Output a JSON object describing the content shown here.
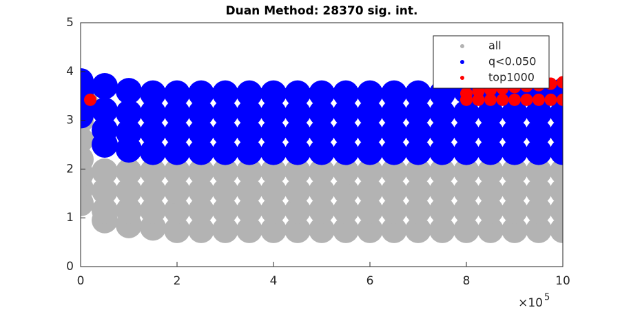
{
  "chart_data": {
    "type": "scatter",
    "title": "Duan Method: 28370 sig. int.",
    "xlim": [
      0,
      1000000
    ],
    "ylim": [
      0,
      5
    ],
    "xticks": [
      0,
      {
        "value": 200000,
        "label": "2"
      },
      {
        "value": 400000,
        "label": "4"
      },
      {
        "value": 600000,
        "label": "6"
      },
      {
        "value": 800000,
        "label": "8"
      },
      {
        "value": 1000000,
        "label": "10"
      }
    ],
    "yticks": [
      0,
      1,
      2,
      3,
      4,
      5
    ],
    "x_exponent": {
      "base": "×10",
      "power": "5"
    },
    "legend": "northeast",
    "series": [
      {
        "name": "all",
        "color": "#b3b3b3",
        "x": [
          0,
          50000,
          100000,
          150000,
          200000,
          250000,
          300000,
          350000,
          400000,
          450000,
          500000,
          550000,
          600000,
          650000,
          700000,
          750000,
          800000,
          850000,
          900000,
          950000,
          1000000,
          0,
          50000,
          100000,
          150000,
          200000,
          250000,
          300000,
          350000,
          400000,
          450000,
          500000,
          550000,
          600000,
          650000,
          700000,
          750000,
          800000,
          850000,
          900000,
          950000,
          1000000,
          0,
          50000,
          100000,
          150000,
          200000,
          250000,
          300000,
          350000,
          400000,
          450000,
          500000,
          550000,
          600000,
          650000,
          700000,
          750000,
          800000,
          850000,
          900000,
          950000,
          1000000,
          0,
          50000,
          100000,
          150000,
          200000,
          250000,
          300000,
          350000,
          400000,
          450000,
          500000,
          550000,
          600000,
          650000,
          700000,
          750000,
          800000,
          850000,
          900000,
          950000,
          1000000,
          0,
          0,
          10000
        ],
        "y": [
          1.3,
          0.95,
          0.85,
          0.8,
          0.75,
          0.75,
          0.75,
          0.75,
          0.75,
          0.75,
          0.75,
          0.75,
          0.75,
          0.75,
          0.75,
          0.75,
          0.75,
          0.75,
          0.75,
          0.75,
          0.75,
          1.6,
          1.15,
          1.15,
          1.15,
          1.15,
          1.15,
          1.15,
          1.15,
          1.15,
          1.15,
          1.15,
          1.15,
          1.15,
          1.15,
          1.15,
          1.15,
          1.15,
          1.15,
          1.15,
          1.15,
          1.15,
          1.9,
          1.55,
          1.55,
          1.55,
          1.55,
          1.55,
          1.55,
          1.55,
          1.55,
          1.55,
          1.55,
          1.55,
          1.55,
          1.55,
          1.55,
          1.55,
          1.55,
          1.55,
          1.55,
          1.55,
          1.55,
          2.2,
          1.95,
          1.95,
          1.95,
          1.95,
          1.95,
          1.95,
          1.95,
          1.95,
          1.95,
          1.95,
          1.95,
          1.95,
          1.95,
          1.95,
          1.95,
          1.95,
          1.95,
          1.95,
          1.95,
          1.95,
          2.6,
          3.0,
          3.35
        ]
      },
      {
        "name": "q<0.050",
        "color": "#0000ff",
        "x": [
          0,
          50000,
          100000,
          150000,
          200000,
          250000,
          300000,
          350000,
          400000,
          450000,
          500000,
          550000,
          600000,
          650000,
          700000,
          750000,
          800000,
          850000,
          900000,
          950000,
          1000000,
          0,
          50000,
          100000,
          150000,
          200000,
          250000,
          300000,
          350000,
          400000,
          450000,
          500000,
          550000,
          600000,
          650000,
          700000,
          750000,
          800000,
          850000,
          900000,
          950000,
          1000000,
          0,
          50000,
          100000,
          150000,
          200000,
          250000,
          300000,
          350000,
          400000,
          450000,
          500000,
          550000,
          600000,
          650000,
          700000,
          750000,
          800000,
          850000,
          900000,
          950000,
          1000000,
          0,
          50000,
          100000,
          150000,
          200000,
          250000,
          300000,
          350000,
          400000,
          450000,
          500000,
          550000,
          600000,
          650000,
          700000,
          750000,
          800000,
          850000,
          900000,
          950000,
          1000000
        ],
        "y": [
          3.1,
          2.5,
          2.4,
          2.35,
          2.35,
          2.35,
          2.35,
          2.35,
          2.35,
          2.35,
          2.35,
          2.35,
          2.35,
          2.35,
          2.35,
          2.35,
          2.35,
          2.35,
          2.35,
          2.35,
          2.35,
          3.3,
          2.8,
          2.75,
          2.75,
          2.75,
          2.75,
          2.75,
          2.75,
          2.75,
          2.75,
          2.75,
          2.75,
          2.75,
          2.75,
          2.75,
          2.75,
          2.75,
          2.75,
          2.75,
          2.75,
          2.75,
          3.55,
          3.2,
          3.15,
          3.15,
          3.15,
          3.15,
          3.15,
          3.15,
          3.15,
          3.15,
          3.15,
          3.15,
          3.15,
          3.15,
          3.15,
          3.15,
          3.15,
          3.15,
          3.15,
          3.15,
          3.15,
          3.8,
          3.7,
          3.6,
          3.55,
          3.55,
          3.55,
          3.55,
          3.55,
          3.55,
          3.55,
          3.55,
          3.55,
          3.55,
          3.55,
          3.55,
          3.55,
          3.6,
          3.6,
          3.6,
          3.6,
          3.6
        ]
      },
      {
        "name": "top1000",
        "color": "#ff0000",
        "x": [
          800000,
          825000,
          850000,
          875000,
          900000,
          925000,
          950000,
          975000,
          1000000,
          800000,
          825000,
          850000,
          875000,
          900000,
          925000,
          950000,
          975000,
          1000000,
          20000
        ],
        "y": [
          3.42,
          3.42,
          3.42,
          3.42,
          3.42,
          3.42,
          3.42,
          3.42,
          3.42,
          3.55,
          3.6,
          3.62,
          3.65,
          3.68,
          3.7,
          3.72,
          3.75,
          3.78,
          3.42
        ]
      }
    ]
  }
}
